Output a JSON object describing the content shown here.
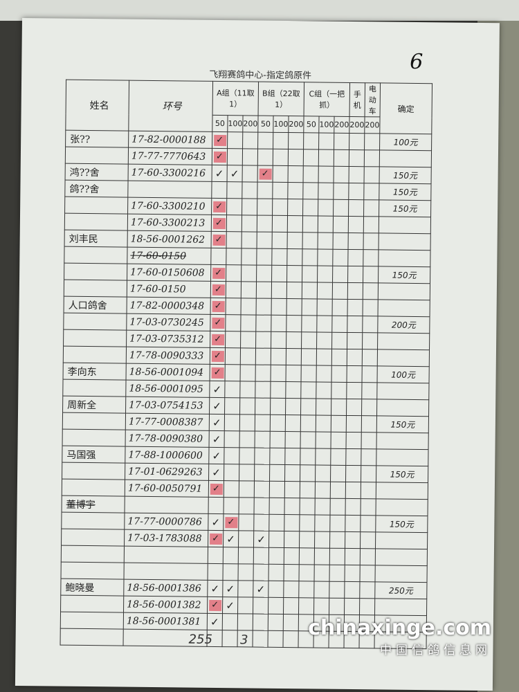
{
  "title": "飞翔赛鸽中心-指定鸽原件",
  "page_number": "6",
  "headers": {
    "name": "姓名",
    "ring": "环号",
    "groupA": "A组（11取1）",
    "groupB": "B组（22取1）",
    "groupC": "C组（一把抓）",
    "phone": "手机",
    "ebike": "电动车",
    "confirm": "确定"
  },
  "sub_headers": [
    "50",
    "100",
    "200",
    "50",
    "100",
    "200",
    "50",
    "100",
    "200",
    "200",
    "200"
  ],
  "columns": [
    "A50",
    "A100",
    "A200",
    "B50",
    "B100",
    "B200",
    "C50",
    "C100",
    "C200",
    "P200",
    "E200"
  ],
  "rows": [
    {
      "name": "张??",
      "ring": "17-82-0000188",
      "marks": {
        "A50": "stamp"
      },
      "confirm": "100元"
    },
    {
      "name": "",
      "ring": "17-77-7770643",
      "marks": {
        "A50": "stamp"
      },
      "confirm": ""
    },
    {
      "name": "鸿??舍",
      "ring": "17-60-3300216",
      "marks": {
        "A50": "check",
        "A100": "check",
        "B50": "stamp"
      },
      "confirm": "150元"
    },
    {
      "name": "鸽??舍",
      "ring": "",
      "marks": {},
      "confirm": "150元"
    },
    {
      "name": "",
      "ring": "17-60-3300210",
      "marks": {
        "A50": "stamp"
      },
      "confirm": "150元"
    },
    {
      "name": "",
      "ring": "17-60-3300213",
      "marks": {
        "A50": "stamp"
      },
      "confirm": ""
    },
    {
      "name": "刘丰民",
      "ring": "18-56-0001262",
      "marks": {
        "A50": "stamp"
      },
      "confirm": ""
    },
    {
      "name": "",
      "ring": "17-60-0150",
      "struck": true,
      "marks": {},
      "confirm": ""
    },
    {
      "name": "",
      "ring": "17-60-0150608",
      "marks": {
        "A50": "stamp"
      },
      "confirm": "150元"
    },
    {
      "name": "",
      "ring": "17-60-0150",
      "marks": {
        "A50": "stamp"
      },
      "confirm": ""
    },
    {
      "name": "人口鸽舍",
      "ring": "17-82-0000348",
      "marks": {
        "A50": "stamp"
      },
      "confirm": ""
    },
    {
      "name": "",
      "ring": "17-03-0730245",
      "marks": {
        "A50": "stamp"
      },
      "confirm": "200元"
    },
    {
      "name": "",
      "ring": "17-03-0735312",
      "marks": {
        "A50": "stamp"
      },
      "confirm": ""
    },
    {
      "name": "",
      "ring": "17-78-0090333",
      "marks": {
        "A50": "stamp"
      },
      "confirm": ""
    },
    {
      "name": "李向东",
      "ring": "18-56-0001094",
      "marks": {
        "A50": "stamp"
      },
      "confirm": "100元"
    },
    {
      "name": "",
      "ring": "18-56-0001095",
      "marks": {
        "A50": "check"
      },
      "confirm": ""
    },
    {
      "name": "周新全",
      "ring": "17-03-0754153",
      "marks": {
        "A50": "check"
      },
      "confirm": ""
    },
    {
      "name": "",
      "ring": "17-77-0008387",
      "marks": {
        "A50": "check"
      },
      "confirm": "150元"
    },
    {
      "name": "",
      "ring": "17-78-0090380",
      "marks": {
        "A50": "check"
      },
      "confirm": ""
    },
    {
      "name": "马国强",
      "ring": "17-88-1000600",
      "marks": {
        "A50": "check"
      },
      "confirm": ""
    },
    {
      "name": "",
      "ring": "17-01-0629263",
      "marks": {
        "A50": "check"
      },
      "confirm": "150元"
    },
    {
      "name": "",
      "ring": "17-60-0050791",
      "marks": {
        "A50": "stamp"
      },
      "confirm": ""
    },
    {
      "name": "董博宇",
      "ring": "",
      "struck": true,
      "marks": {},
      "confirm": ""
    },
    {
      "name": "",
      "ring": "17-77-0000786",
      "marks": {
        "A50": "check",
        "A100": "stamp"
      },
      "confirm": "150元"
    },
    {
      "name": "",
      "ring": "17-03-1783088",
      "marks": {
        "A50": "stamp",
        "A100": "check",
        "B50": "check"
      },
      "confirm": ""
    },
    {
      "name": "",
      "ring": "",
      "marks": {},
      "confirm": ""
    },
    {
      "name": "",
      "ring": "",
      "marks": {},
      "confirm": ""
    },
    {
      "name": "鲍晓曼",
      "ring": "18-56-0001386",
      "marks": {
        "A50": "check",
        "A100": "check",
        "B50": "check"
      },
      "confirm": "250元"
    },
    {
      "name": "",
      "ring": "18-56-0001382",
      "marks": {
        "A50": "stamp",
        "A100": "check"
      },
      "confirm": ""
    },
    {
      "name": "",
      "ring": "18-56-0001381",
      "marks": {
        "A50": "check"
      },
      "confirm": ""
    },
    {
      "name": "",
      "ring": "",
      "marks": {},
      "confirm": ""
    }
  ],
  "footer": {
    "left": "255",
    "right": "3"
  },
  "watermark": {
    "site": "chinaxinge.com",
    "name": "中国信鸽信息网"
  },
  "colors": {
    "stamp": "#dc283c",
    "ink": "#222222",
    "paper": "#e8ebe6"
  }
}
